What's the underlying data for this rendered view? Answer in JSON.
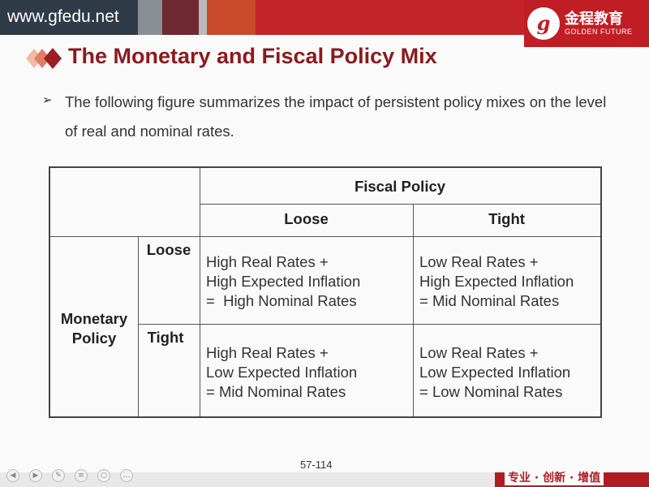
{
  "header": {
    "url": "www.gfedu.net",
    "logo_mark": "g",
    "logo_cn": "金程教育",
    "logo_en": "GOLDEN FUTURE"
  },
  "title": "The Monetary and Fiscal Policy Mix",
  "bullet": "The following figure summarizes the impact of persistent policy mixes on the level of real and nominal rates.",
  "table": {
    "fiscal_header": "Fiscal Policy",
    "fiscal_loose": "Loose",
    "fiscal_tight": "Tight",
    "monetary_header": [
      "Monetary",
      "Policy"
    ],
    "monetary_loose": "Loose",
    "monetary_tight": "Tight",
    "cells": {
      "loose_loose": [
        "High Real Rates +",
        "High Expected Inflation",
        "=  High Nominal Rates"
      ],
      "loose_tight": [
        "Low Real Rates +",
        "High Expected Inflation",
        "= Mid Nominal Rates"
      ],
      "tight_loose": [
        "High Real Rates +",
        "Low Expected Inflation",
        "= Mid Nominal Rates"
      ],
      "tight_tight": [
        "Low Real Rates +",
        "Low Expected Inflation",
        "= Low Nominal Rates"
      ]
    }
  },
  "footer": {
    "page": "57-114",
    "slogan": "专业 · 创新 · 增值"
  },
  "colors": {
    "title": "#8b1a1f",
    "brand_red": "#c01e24",
    "url_bg": "#2f3b46"
  }
}
